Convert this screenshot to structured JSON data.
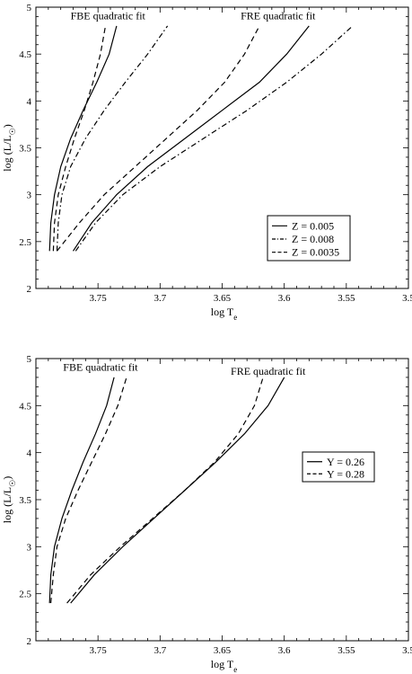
{
  "chart_data": [
    {
      "type": "line",
      "xlabel": "log T_e",
      "ylabel": "log (L/L_☉)",
      "xlim": [
        3.8,
        3.5
      ],
      "ylim": [
        2,
        5
      ],
      "x_reversed": true,
      "xticks": [
        3.75,
        3.7,
        3.65,
        3.6,
        3.55,
        3.5
      ],
      "yticks": [
        2,
        2.5,
        3,
        3.5,
        4,
        4.5,
        5
      ],
      "grid": false,
      "legend_position": "lower-right",
      "annotations": [
        {
          "text": "FBE quadratic fit",
          "x": 3.742,
          "y": 4.87
        },
        {
          "text": "FRE quadratic fit",
          "x": 3.605,
          "y": 4.87
        }
      ],
      "series": [
        {
          "name": "Z = 0.005",
          "style": "solid",
          "segments": [
            {
              "x": [
                3.789,
                3.788,
                3.785,
                3.78,
                3.772,
                3.762,
                3.751,
                3.741,
                3.735
              ],
              "y": [
                2.4,
                2.7,
                3.0,
                3.3,
                3.6,
                3.9,
                4.2,
                4.5,
                4.8
              ]
            },
            {
              "x": [
                3.77,
                3.755,
                3.735,
                3.71,
                3.68,
                3.65,
                3.62,
                3.598,
                3.58
              ],
              "y": [
                2.4,
                2.7,
                3.0,
                3.3,
                3.6,
                3.9,
                4.2,
                4.5,
                4.8
              ]
            }
          ]
        },
        {
          "name": "Z = 0.008",
          "style": "dash-dot",
          "segments": [
            {
              "x": [
                3.783,
                3.782,
                3.779,
                3.772,
                3.76,
                3.745,
                3.728,
                3.71,
                3.694
              ],
              "y": [
                2.4,
                2.7,
                3.0,
                3.3,
                3.6,
                3.9,
                4.2,
                4.5,
                4.8
              ]
            },
            {
              "x": [
                3.768,
                3.752,
                3.73,
                3.7,
                3.665,
                3.63,
                3.598,
                3.57,
                3.545
              ],
              "y": [
                2.4,
                2.7,
                3.0,
                3.3,
                3.6,
                3.9,
                4.2,
                4.5,
                4.8
              ]
            }
          ]
        },
        {
          "name": "Z = 0.0035",
          "style": "dashed",
          "segments": [
            {
              "x": [
                3.786,
                3.785,
                3.782,
                3.776,
                3.769,
                3.761,
                3.754,
                3.748,
                3.744
              ],
              "y": [
                2.4,
                2.7,
                3.0,
                3.3,
                3.6,
                3.9,
                4.2,
                4.5,
                4.8
              ]
            },
            {
              "x": [
                3.783,
                3.765,
                3.745,
                3.72,
                3.695,
                3.67,
                3.648,
                3.632,
                3.62
              ],
              "y": [
                2.4,
                2.7,
                3.0,
                3.3,
                3.6,
                3.9,
                4.2,
                4.5,
                4.8
              ]
            }
          ]
        }
      ]
    },
    {
      "type": "line",
      "xlabel": "log T_e",
      "ylabel": "log (L/L_☉)",
      "xlim": [
        3.8,
        3.5
      ],
      "ylim": [
        2,
        5
      ],
      "x_reversed": true,
      "xticks": [
        3.75,
        3.7,
        3.65,
        3.6,
        3.55,
        3.5
      ],
      "yticks": [
        2,
        2.5,
        3,
        3.5,
        4,
        4.5,
        5
      ],
      "grid": false,
      "legend_position": "right",
      "annotations": [
        {
          "text": "FBE quadratic fit",
          "x": 3.748,
          "y": 4.87
        },
        {
          "text": "FRE quadratic fit",
          "x": 3.613,
          "y": 4.83
        }
      ],
      "series": [
        {
          "name": "Y = 0.26",
          "style": "solid",
          "segments": [
            {
              "x": [
                3.789,
                3.788,
                3.785,
                3.779,
                3.771,
                3.762,
                3.752,
                3.743,
                3.737
              ],
              "y": [
                2.4,
                2.7,
                3.0,
                3.3,
                3.6,
                3.9,
                4.2,
                4.5,
                4.8
              ]
            },
            {
              "x": [
                3.772,
                3.753,
                3.73,
                3.705,
                3.68,
                3.655,
                3.632,
                3.613,
                3.6
              ],
              "y": [
                2.4,
                2.7,
                3.0,
                3.3,
                3.6,
                3.9,
                4.2,
                4.5,
                4.8
              ]
            }
          ]
        },
        {
          "name": "Y = 0.28",
          "style": "dashed",
          "segments": [
            {
              "x": [
                3.788,
                3.786,
                3.783,
                3.776,
                3.766,
                3.755,
                3.744,
                3.734,
                3.727
              ],
              "y": [
                2.4,
                2.7,
                3.0,
                3.3,
                3.6,
                3.9,
                4.2,
                4.5,
                4.8
              ]
            },
            {
              "x": [
                3.775,
                3.756,
                3.732,
                3.706,
                3.68,
                3.656,
                3.637,
                3.624,
                3.617
              ],
              "y": [
                2.4,
                2.7,
                3.0,
                3.3,
                3.6,
                3.9,
                4.2,
                4.5,
                4.8
              ]
            }
          ]
        }
      ]
    }
  ]
}
